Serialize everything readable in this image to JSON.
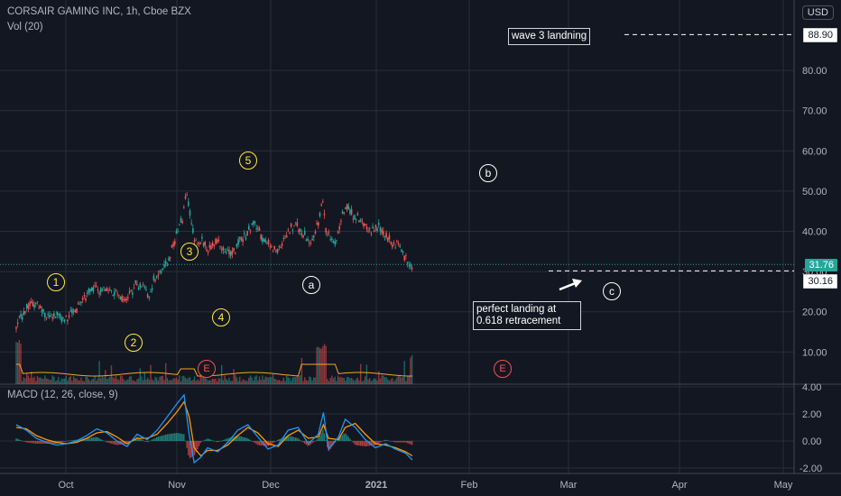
{
  "header": {
    "symbol_line": "CORSAIR GAMING INC, 1h, Cboe BZX",
    "volume_line": "Vol (20)",
    "currency": "USD",
    "macd_line": "MACD (12, 26, close, 9)"
  },
  "chart_data": [
    {
      "type": "candlestick",
      "title": "CORSAIR GAMING INC, 1h, Cboe BZX",
      "x_labels": [
        "Oct",
        "Nov",
        "Dec",
        "2021",
        "Feb",
        "Mar",
        "Apr",
        "May"
      ],
      "y_ticks": [
        "10.00",
        "20.00",
        "30.00",
        "40.00",
        "50.00",
        "60.00",
        "70.00",
        "80.00"
      ],
      "ylim": [
        3,
        90
      ],
      "grid": true,
      "price_path": [
        [
          0.0,
          16
        ],
        [
          1.5,
          19
        ],
        [
          3,
          21
        ],
        [
          5,
          22.5
        ],
        [
          7,
          21
        ],
        [
          9,
          19.5
        ],
        [
          11,
          19
        ],
        [
          13,
          19
        ],
        [
          15,
          18.5
        ],
        [
          17,
          20
        ],
        [
          19,
          22
        ],
        [
          21,
          24
        ],
        [
          23,
          26
        ],
        [
          25,
          25.5
        ],
        [
          27,
          26
        ],
        [
          29,
          25
        ],
        [
          31,
          24
        ],
        [
          32.5,
          23
        ],
        [
          34,
          25
        ],
        [
          36,
          27
        ],
        [
          38,
          26.5
        ],
        [
          39.5,
          23.5
        ],
        [
          41,
          28
        ],
        [
          43,
          30
        ],
        [
          45,
          32
        ],
        [
          46.5,
          36
        ],
        [
          48,
          40
        ],
        [
          49.5,
          43
        ],
        [
          50.5,
          50
        ],
        [
          51.5,
          47
        ],
        [
          52.5,
          40
        ],
        [
          54,
          36
        ],
        [
          55.5,
          38
        ],
        [
          57,
          35
        ],
        [
          58.5,
          37
        ],
        [
          60,
          37.5
        ],
        [
          61.5,
          36
        ],
        [
          63,
          34.5
        ],
        [
          65,
          35
        ],
        [
          67,
          38
        ],
        [
          69,
          40
        ],
        [
          71,
          42
        ],
        [
          73,
          39
        ],
        [
          75,
          37
        ],
        [
          77,
          35.5
        ],
        [
          79,
          36
        ],
        [
          81,
          40
        ],
        [
          83,
          42
        ],
        [
          85,
          40
        ],
        [
          87,
          37.5
        ],
        [
          89,
          39
        ],
        [
          91.5,
          48
        ],
        [
          92,
          41
        ],
        [
          93.5,
          38
        ],
        [
          95,
          37
        ],
        [
          96.5,
          42
        ],
        [
          98,
          46
        ],
        [
          100,
          44
        ],
        [
          102,
          43
        ],
        [
          104,
          41
        ],
        [
          106,
          40
        ],
        [
          108,
          41
        ],
        [
          110,
          39
        ],
        [
          112,
          37
        ],
        [
          114,
          36.5
        ],
        [
          115.5,
          34
        ],
        [
          117,
          32
        ],
        [
          118,
          30.5
        ]
      ],
      "last_price": "31.76",
      "target_price": "88.90",
      "landing_price": "30.16",
      "wave_labels": [
        "1",
        "2",
        "3",
        "4",
        "5",
        "a",
        "b",
        "c"
      ],
      "annotations": [
        "wave 3 landning",
        "perfect landing at 0.618 retracement"
      ],
      "earnings_markers": [
        "E",
        "E"
      ]
    },
    {
      "type": "line",
      "title": "MACD (12, 26, close, 9)",
      "y_ticks": [
        "4.00",
        "2.00",
        "0.00",
        "-2.00"
      ],
      "ylim": [
        -2.5,
        4.3
      ],
      "series": [
        {
          "name": "MACD",
          "color": "#2196f3",
          "x": [
            0,
            3,
            6,
            9,
            12,
            15,
            18,
            21,
            24,
            27,
            30,
            33,
            36,
            39,
            42,
            45,
            48,
            50,
            51.5,
            53,
            55,
            57,
            60,
            63,
            66,
            69,
            72,
            75,
            78,
            81,
            84,
            87,
            90,
            91.5,
            93,
            96,
            98,
            101,
            104,
            107,
            110,
            113,
            116,
            118
          ],
          "values": [
            1.2,
            0.8,
            0.2,
            -0.1,
            -0.3,
            -0.2,
            0.0,
            0.4,
            0.9,
            0.6,
            0.0,
            -0.4,
            0.5,
            0.1,
            0.8,
            1.8,
            2.8,
            3.4,
            0.5,
            -1.6,
            -1.2,
            -0.5,
            -0.8,
            -0.1,
            0.8,
            1.2,
            0.3,
            -0.6,
            -0.3,
            0.8,
            1.0,
            -0.2,
            0.5,
            2.1,
            -0.6,
            0.3,
            1.6,
            1.0,
            0.1,
            -0.5,
            -0.2,
            -0.6,
            -0.9,
            -1.4
          ]
        },
        {
          "name": "Signal",
          "color": "#ff9800",
          "x": [
            0,
            3,
            6,
            9,
            12,
            15,
            18,
            21,
            24,
            27,
            30,
            33,
            36,
            39,
            42,
            45,
            48,
            50,
            51.5,
            53,
            55,
            57,
            60,
            63,
            66,
            69,
            72,
            75,
            78,
            81,
            84,
            87,
            90,
            91.5,
            93,
            96,
            98,
            101,
            104,
            107,
            110,
            113,
            116,
            118
          ],
          "values": [
            1.0,
            0.9,
            0.4,
            0.1,
            -0.1,
            -0.2,
            -0.1,
            0.2,
            0.6,
            0.7,
            0.3,
            -0.2,
            0.2,
            0.2,
            0.5,
            1.3,
            2.2,
            2.9,
            1.8,
            -0.5,
            -1.1,
            -0.7,
            -0.7,
            -0.3,
            0.4,
            1.0,
            0.6,
            -0.2,
            -0.4,
            0.4,
            0.8,
            0.2,
            0.3,
            1.2,
            0.2,
            0.1,
            1.0,
            1.3,
            0.5,
            -0.2,
            -0.3,
            -0.5,
            -0.8,
            -1.1
          ]
        }
      ]
    }
  ]
}
